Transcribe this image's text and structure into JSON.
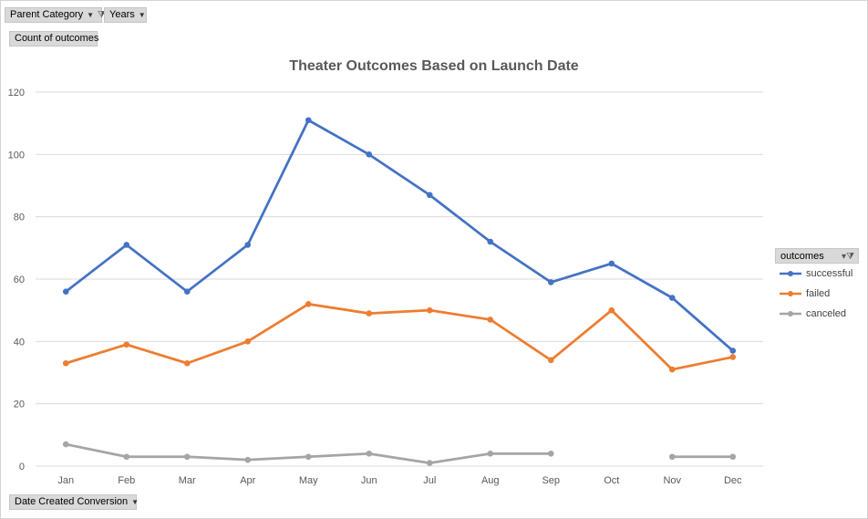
{
  "filters": {
    "parent_category": "Parent Category",
    "years": "Years",
    "values_field": "Count of outcomes",
    "axis_field": "Date Created Conversion",
    "legend_field": "outcomes"
  },
  "icons": {
    "dropdown": "chevron-down-icon",
    "filter": "filter-icon"
  },
  "colors": {
    "successful": "#4472c4",
    "failed": "#ed7d31",
    "canceled": "#a5a5a5"
  },
  "chart_data": {
    "type": "line",
    "title": "Theater Outcomes Based on Launch Date",
    "xlabel": "",
    "ylabel": "",
    "categories": [
      "Jan",
      "Feb",
      "Mar",
      "Apr",
      "May",
      "Jun",
      "Jul",
      "Aug",
      "Sep",
      "Oct",
      "Nov",
      "Dec"
    ],
    "ylim": [
      0,
      120
    ],
    "yticks": [
      "0",
      "20",
      "40",
      "60",
      "80",
      "100",
      "120"
    ],
    "grid": true,
    "legend_position": "right",
    "series": [
      {
        "name": "successful",
        "values": [
          56,
          71,
          56,
          71,
          111,
          100,
          87,
          72,
          59,
          65,
          54,
          37
        ]
      },
      {
        "name": "failed",
        "values": [
          33,
          39,
          33,
          40,
          52,
          49,
          50,
          47,
          34,
          50,
          31,
          35
        ]
      },
      {
        "name": "canceled",
        "values": [
          7,
          3,
          3,
          2,
          3,
          4,
          1,
          4,
          4,
          null,
          3,
          3
        ]
      }
    ]
  }
}
